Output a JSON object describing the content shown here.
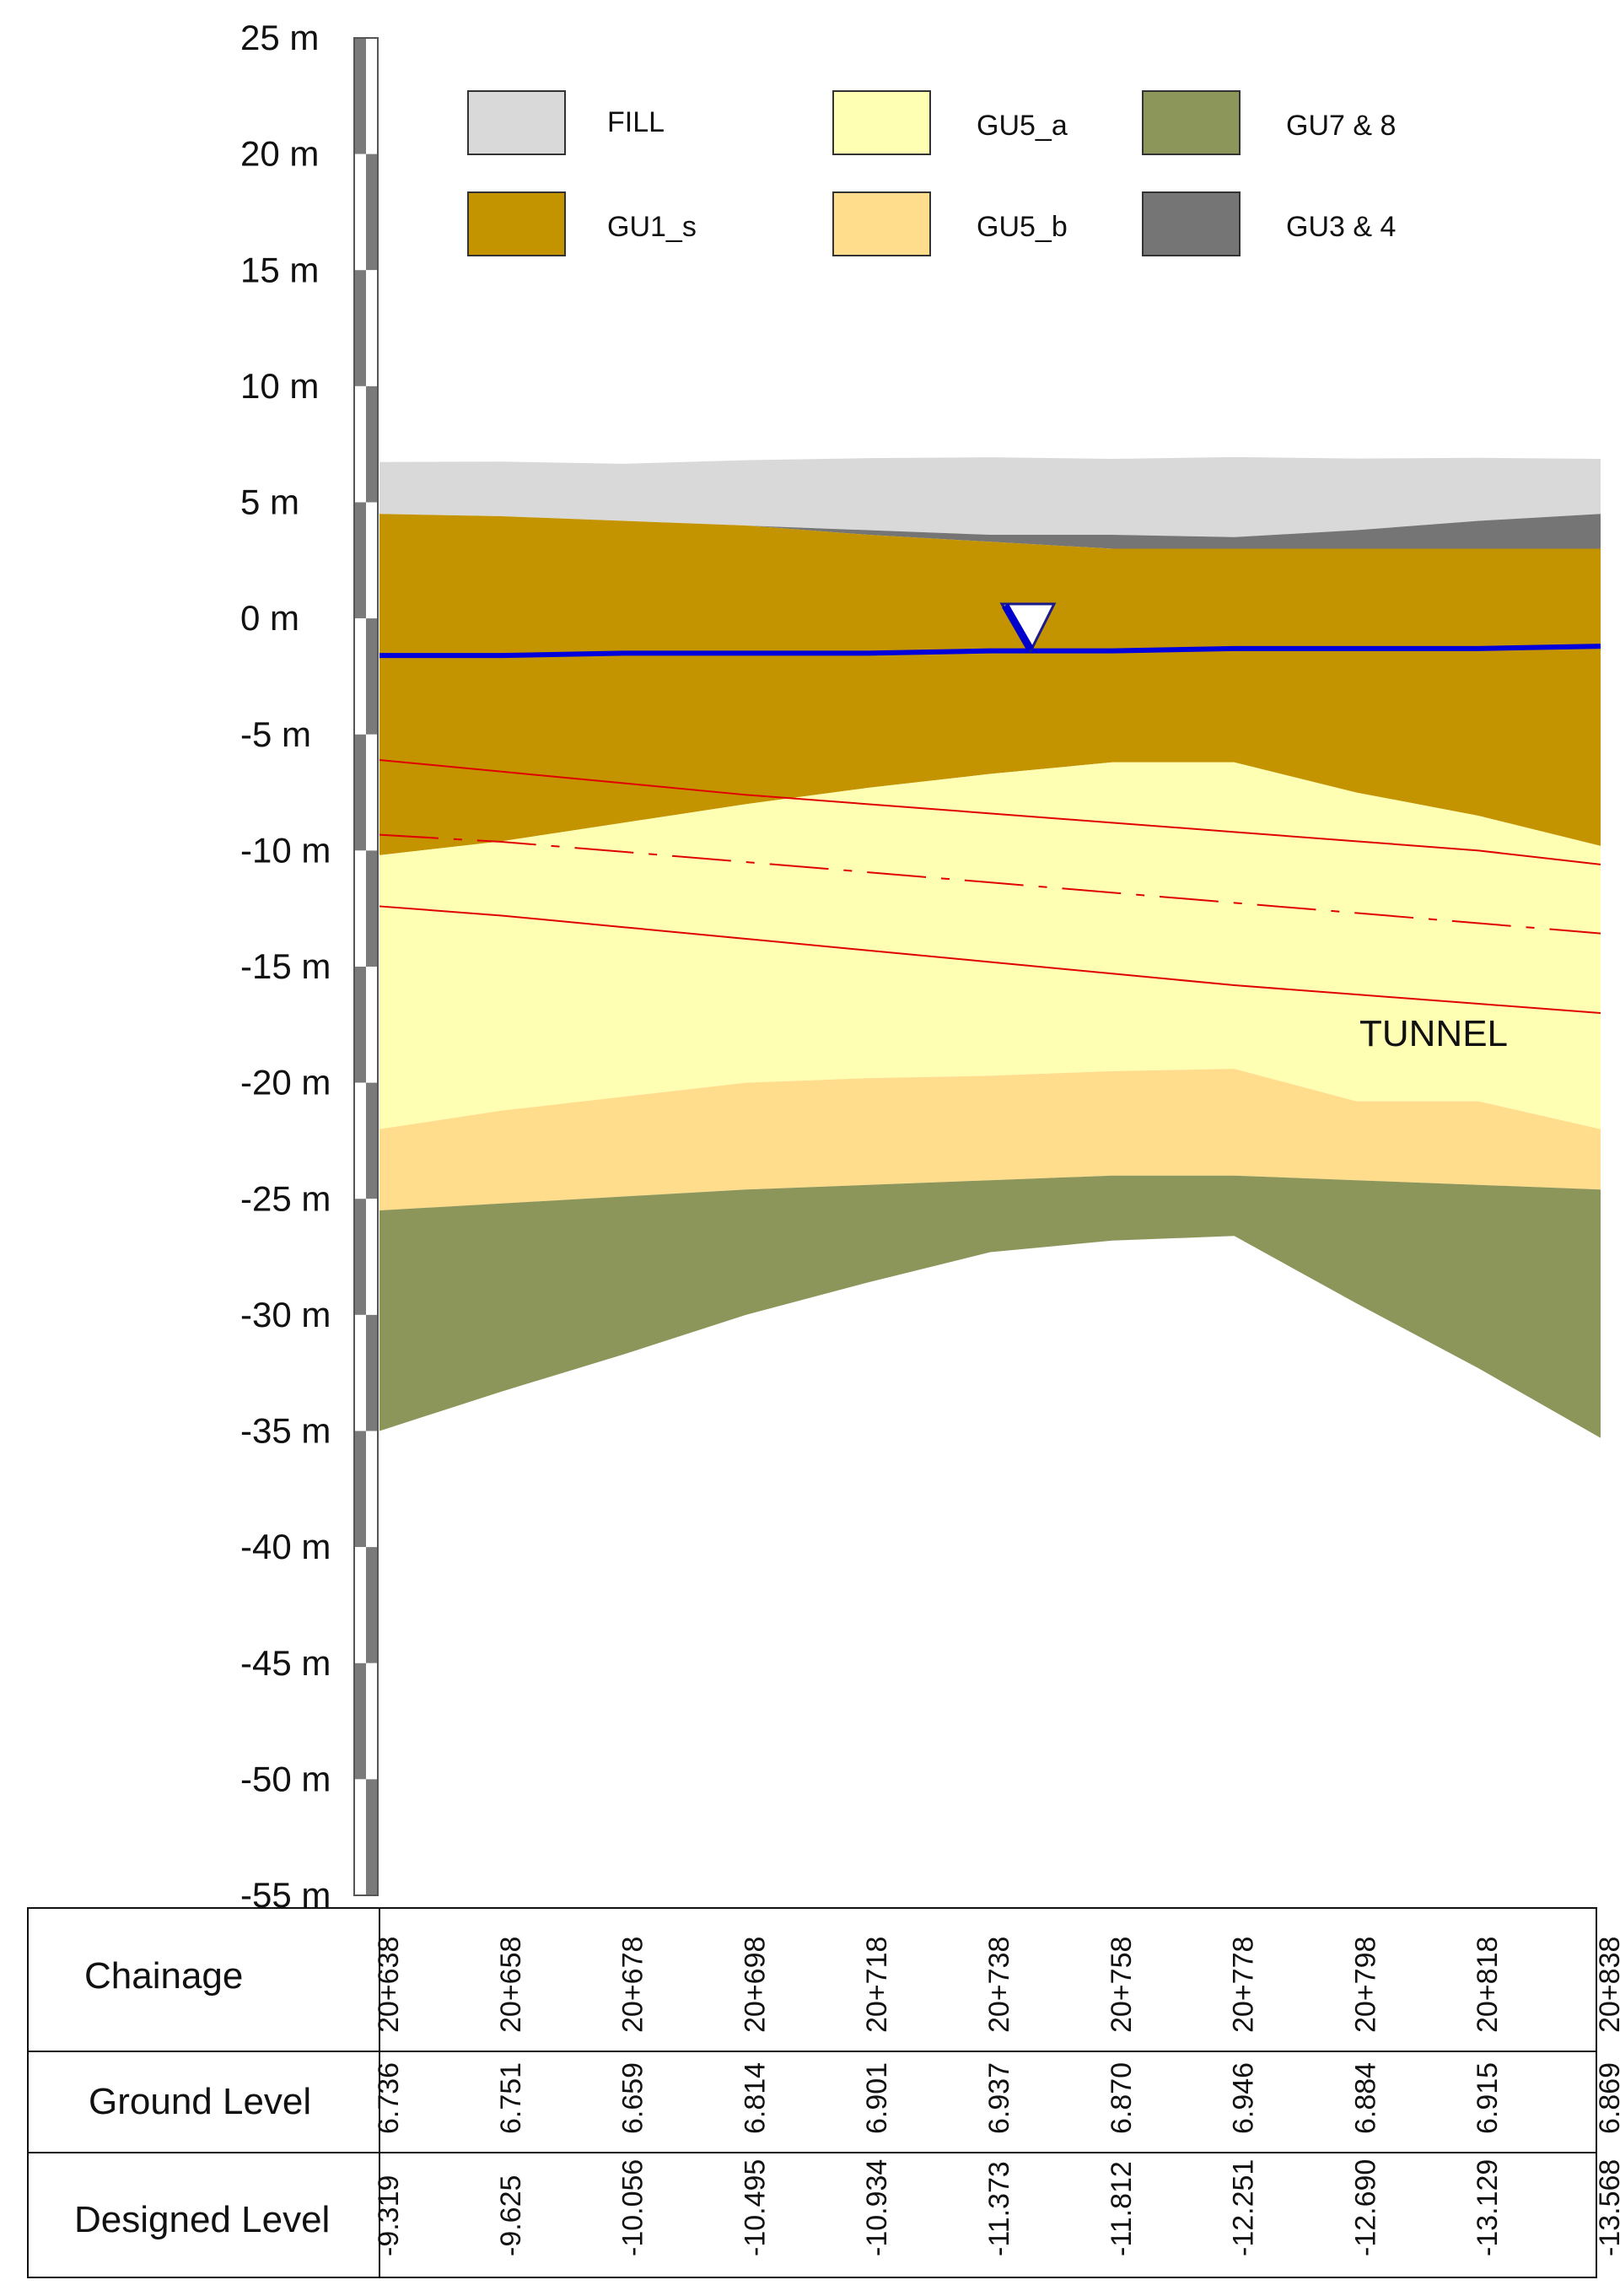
{
  "y_axis": {
    "unit": "m",
    "ticks": [
      "25 m",
      "20 m",
      "15 m",
      "10 m",
      "5 m",
      "0 m",
      "-5 m",
      "-10 m",
      "-15 m",
      "-20 m",
      "-25 m",
      "-30 m",
      "-35 m",
      "-40 m",
      "-45 m",
      "-50 m",
      "-55 m"
    ]
  },
  "legend": [
    {
      "label": "FILL",
      "color": "#d9d9d9"
    },
    {
      "label": "GU5_a",
      "color": "#ffffb3"
    },
    {
      "label": "GU7 & 8",
      "color": "#8c965a"
    },
    {
      "label": "GU1_s",
      "color": "#c49400"
    },
    {
      "label": "GU5_b",
      "color": "#ffdd8c"
    },
    {
      "label": "GU3 & 4",
      "color": "#757575"
    }
  ],
  "annotations": {
    "tunnel_label": "TUNNEL"
  },
  "table": {
    "row_titles": [
      "Chainage",
      "Ground Level",
      "Designed Level"
    ],
    "chainage": [
      "20+638",
      "20+658",
      "20+678",
      "20+698",
      "20+718",
      "20+738",
      "20+758",
      "20+778",
      "20+798",
      "20+818",
      "20+838"
    ],
    "ground_level": [
      "6.736",
      "6.751",
      "6.659",
      "6.814",
      "6.901",
      "6.937",
      "6.870",
      "6.946",
      "6.884",
      "6.915",
      "6.869"
    ],
    "designed_level": [
      "-9.319",
      "-9.625",
      "-10.056",
      "-10.495",
      "-10.934",
      "-11.373",
      "-11.812",
      "-12.251",
      "-12.690",
      "-13.129",
      "-13.568"
    ]
  },
  "chart_data": {
    "type": "area",
    "x_unit": "chainage",
    "y_unit": "m",
    "ylim": [
      -55,
      25
    ],
    "chainage": [
      "20+638",
      "20+658",
      "20+678",
      "20+698",
      "20+718",
      "20+738",
      "20+758",
      "20+778",
      "20+798",
      "20+818",
      "20+838"
    ],
    "strata_tops_m": {
      "FILL": [
        6.736,
        6.751,
        6.659,
        6.814,
        6.901,
        6.937,
        6.87,
        6.946,
        6.884,
        6.915,
        6.869
      ],
      "GU3 & 4": [
        4.5,
        4.4,
        4.2,
        4.0,
        3.8,
        3.6,
        3.6,
        3.5,
        3.8,
        4.2,
        4.5
      ],
      "GU1_s": [
        4.5,
        4.4,
        4.2,
        4.0,
        3.6,
        3.3,
        3.0,
        3.0,
        3.0,
        3.0,
        3.0
      ],
      "GU5_a": [
        -10.2,
        -9.6,
        -8.8,
        -8.0,
        -7.3,
        -6.7,
        -6.2,
        -6.2,
        -7.5,
        -8.5,
        -9.8
      ],
      "GU5_b": [
        -22.0,
        -21.2,
        -20.6,
        -20.0,
        -19.8,
        -19.7,
        -19.5,
        -19.4,
        -20.8,
        -20.8,
        -22.0
      ],
      "GU7 & 8": [
        -25.5,
        -25.2,
        -24.9,
        -24.6,
        -24.4,
        -24.2,
        -24.0,
        -24.0,
        -24.2,
        -24.4,
        -24.6
      ]
    },
    "strata_base_m": [
      -35.0,
      -33.3,
      -31.7,
      -30.0,
      -28.6,
      -27.3,
      -26.8,
      -26.6,
      -29.5,
      -32.3,
      -35.3
    ],
    "water_table_m": [
      -1.6,
      -1.6,
      -1.5,
      -1.5,
      -1.5,
      -1.4,
      -1.4,
      -1.3,
      -1.3,
      -1.3,
      -1.2
    ],
    "tunnel": {
      "crown_m": [
        -6.1,
        -6.6,
        -7.1,
        -7.6,
        -8.0,
        -8.4,
        -8.8,
        -9.2,
        -9.6,
        -10.0,
        -10.6
      ],
      "axis_m": [
        -9.319,
        -9.625,
        -10.056,
        -10.495,
        -10.934,
        -11.373,
        -11.812,
        -12.251,
        -12.69,
        -13.129,
        -13.568
      ],
      "invert_m": [
        -12.4,
        -12.8,
        -13.3,
        -13.8,
        -14.3,
        -14.8,
        -15.3,
        -15.8,
        -16.2,
        -16.6,
        -17.0
      ]
    }
  }
}
